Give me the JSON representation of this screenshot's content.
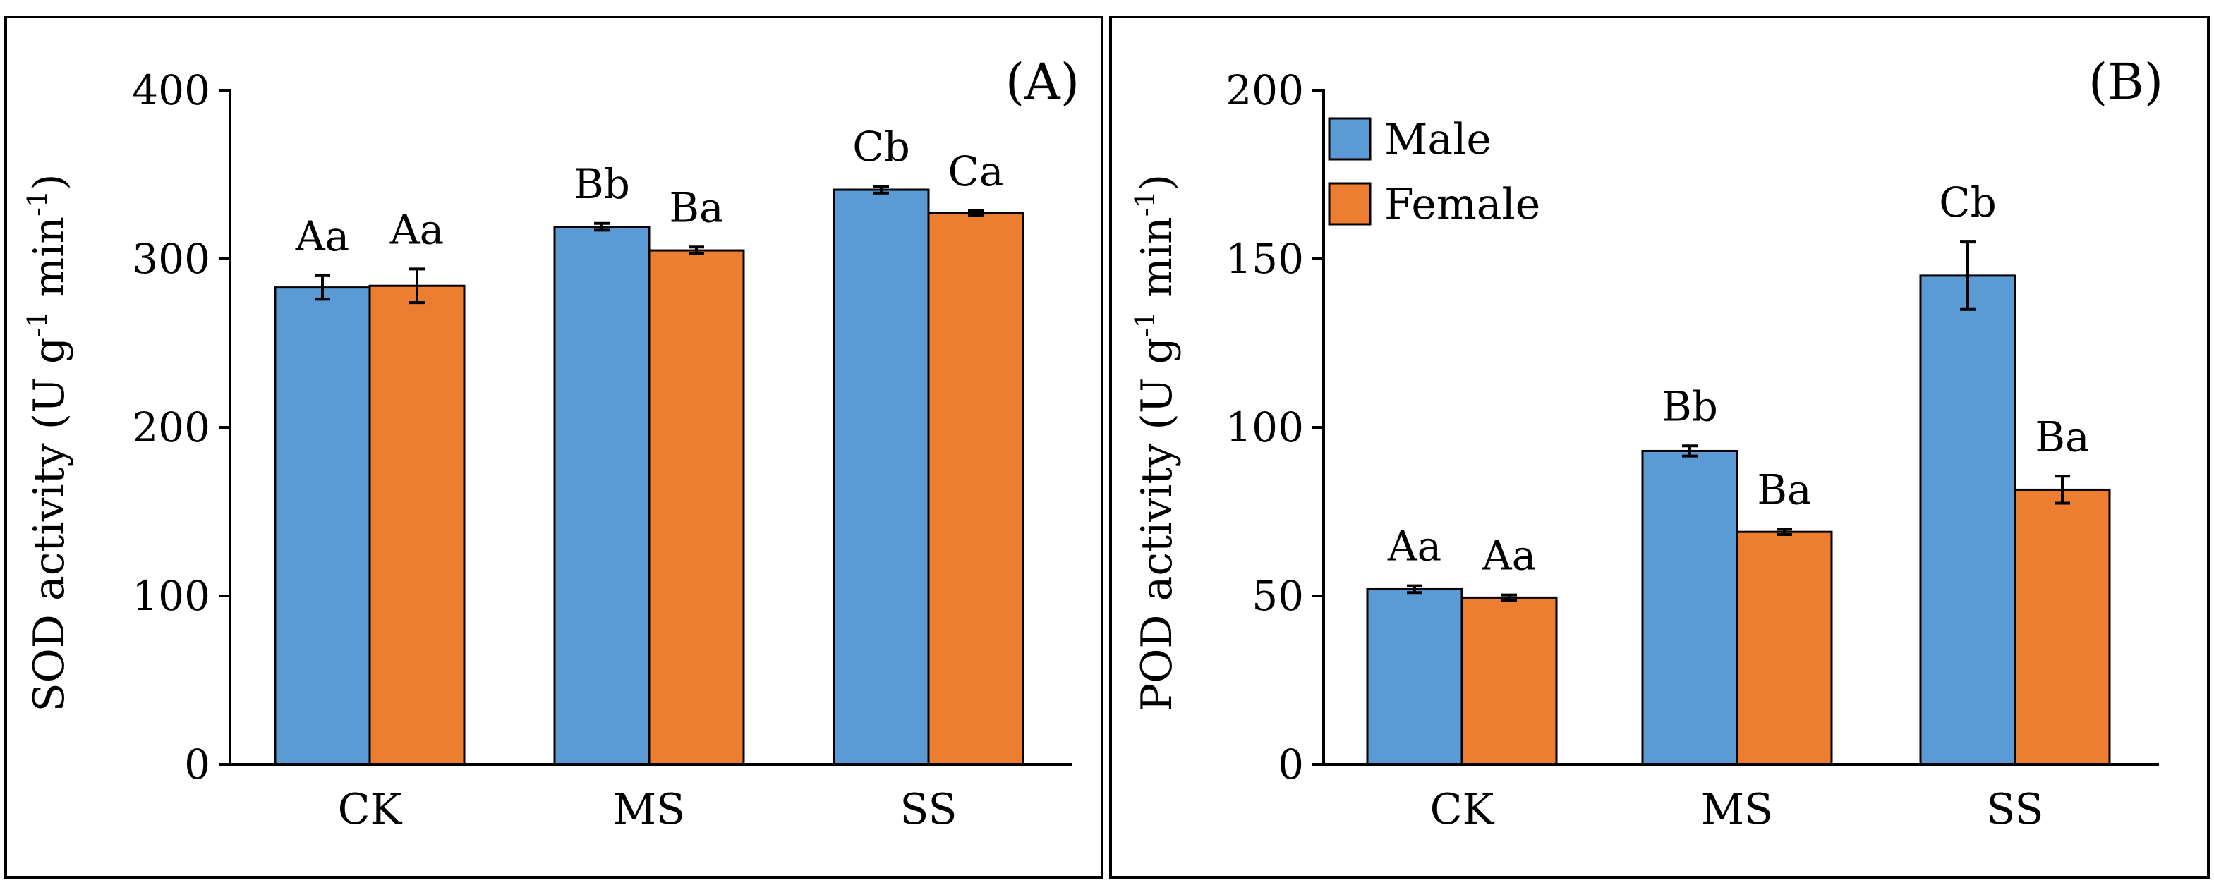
{
  "chart_data": [
    {
      "type": "bar",
      "panel_label": "(A)",
      "ylabel_main": "SOD activity (U g",
      "ylabel_sup1": "-1",
      "ylabel_mid": " min",
      "ylabel_sup2": "-1",
      "ylabel_end": ")",
      "categories": [
        "CK",
        "MS",
        "SS"
      ],
      "ylim": [
        0,
        400
      ],
      "yticks": [
        "0",
        "100",
        "200",
        "300",
        "400"
      ],
      "legend": "none",
      "grid": false,
      "series": [
        {
          "name": "Male",
          "values": [
            283,
            319,
            341
          ],
          "errors": [
            7,
            2,
            2
          ],
          "labels": [
            "Aa",
            "Bb",
            "Cb"
          ],
          "color": "#5b9bd5"
        },
        {
          "name": "Female",
          "values": [
            284,
            305,
            327
          ],
          "errors": [
            10,
            2,
            1.5
          ],
          "labels": [
            "Aa",
            "Ba",
            "Ca"
          ],
          "color": "#ed7d31"
        }
      ]
    },
    {
      "type": "bar",
      "panel_label": "(B)",
      "ylabel_main": "POD activity (U g",
      "ylabel_sup1": "-1",
      "ylabel_mid": " min",
      "ylabel_sup2": "-1",
      "ylabel_end": ")",
      "categories": [
        "CK",
        "MS",
        "SS"
      ],
      "ylim": [
        0,
        200
      ],
      "yticks": [
        "0",
        "50",
        "100",
        "150",
        "200"
      ],
      "legend": "top-left",
      "grid": false,
      "series": [
        {
          "name": "Male",
          "values": [
            52,
            93,
            145
          ],
          "errors": [
            1,
            1.5,
            10
          ],
          "labels": [
            "Aa",
            "Bb",
            "Cb"
          ],
          "color": "#5b9bd5"
        },
        {
          "name": "Female",
          "values": [
            49.5,
            69,
            81.5
          ],
          "errors": [
            0.8,
            0.8,
            4
          ],
          "labels": [
            "Aa",
            "Ba",
            "Ba"
          ],
          "color": "#ed7d31"
        }
      ]
    }
  ]
}
